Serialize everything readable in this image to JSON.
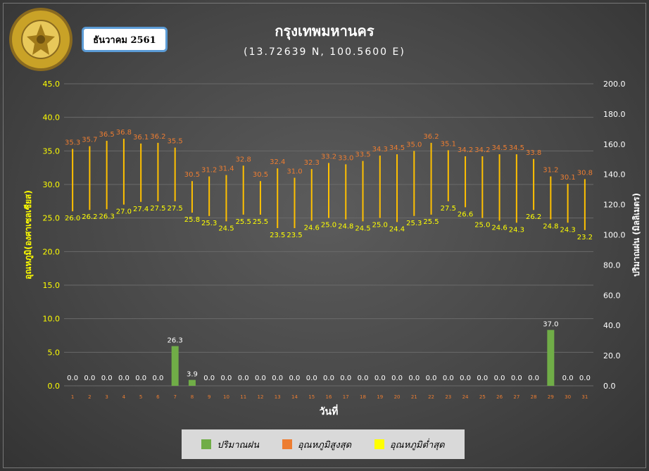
{
  "header": {
    "title": "กรุงเทพมหานคร",
    "coords": "(13.72639 N, 100.5600 E)",
    "month": "ธันวาคม 2561"
  },
  "legend": {
    "rain": "ปริมาณฝน",
    "tmax": "อุณหภูมิสูงสุด",
    "tmin": "อุณหภูมิต่ำสุด"
  },
  "colors": {
    "rain": "#70ad47",
    "tmax": "#ed7d31",
    "tmin": "#ffff00",
    "range_bar": "#ffc000",
    "left_axis_label": "#ffff00",
    "grid": "#6a6a6a"
  },
  "chart_data": {
    "type": "bar",
    "xlabel": "วันที่",
    "ylabel_left": "อุณหภูมิ(องศาเซลเซียส)",
    "ylabel_right": "ปริมาณฝน (มิลลิเมตร)",
    "ylim_left": [
      0,
      45
    ],
    "ylim_right": [
      0,
      200
    ],
    "left_ticks": [
      0,
      5,
      10,
      15,
      20,
      25,
      30,
      35,
      40,
      45
    ],
    "right_ticks": [
      0,
      20,
      40,
      60,
      80,
      100,
      120,
      140,
      160,
      180,
      200
    ],
    "days": [
      1,
      2,
      3,
      4,
      5,
      6,
      7,
      8,
      9,
      10,
      11,
      12,
      13,
      14,
      15,
      16,
      17,
      18,
      19,
      20,
      21,
      22,
      23,
      24,
      25,
      26,
      27,
      28,
      29,
      30,
      31
    ],
    "tmax": [
      35.3,
      35.7,
      36.5,
      36.8,
      36.1,
      36.2,
      35.5,
      30.5,
      31.2,
      31.4,
      32.8,
      30.5,
      32.4,
      31.0,
      32.3,
      33.2,
      33.0,
      33.5,
      34.3,
      34.5,
      35.0,
      36.2,
      35.1,
      34.2,
      34.2,
      34.5,
      34.5,
      33.8,
      31.2,
      30.1,
      30.8
    ],
    "tmin": [
      26.0,
      26.2,
      26.3,
      27.0,
      27.4,
      27.5,
      27.5,
      25.8,
      25.3,
      24.5,
      25.5,
      25.5,
      23.5,
      23.5,
      24.6,
      25.0,
      24.8,
      24.5,
      25.0,
      24.4,
      25.3,
      25.5,
      27.5,
      26.6,
      25.0,
      24.6,
      24.3,
      26.2,
      24.8,
      24.3,
      23.2
    ],
    "rain": [
      0.0,
      0.0,
      0.0,
      0.0,
      0.0,
      0.0,
      26.3,
      3.9,
      0.0,
      0.0,
      0.0,
      0.0,
      0.0,
      0.0,
      0.0,
      0.0,
      0.0,
      0.0,
      0.0,
      0.0,
      0.0,
      0.0,
      0.0,
      0.0,
      0.0,
      0.0,
      0.0,
      0.0,
      37.0,
      0.0,
      0.0
    ]
  }
}
